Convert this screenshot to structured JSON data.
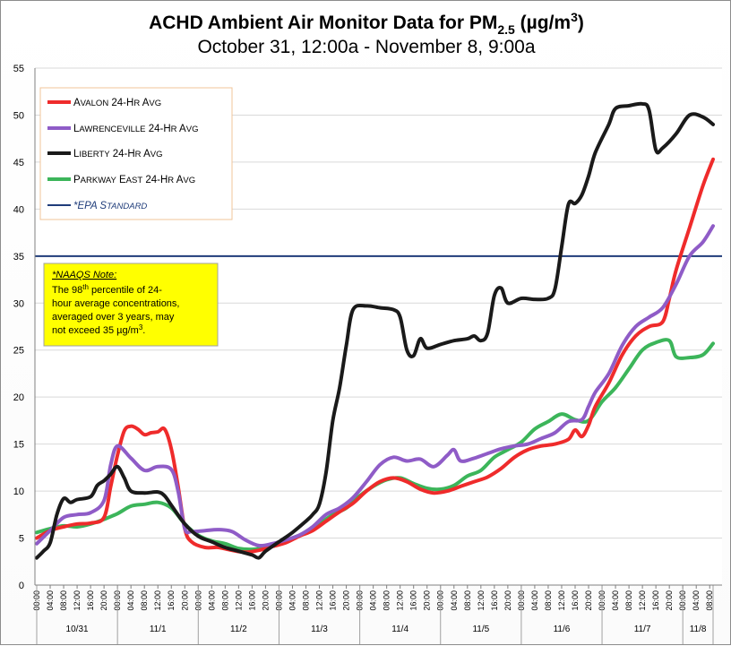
{
  "chart_data": {
    "type": "line",
    "title": "ACHD Ambient Air Monitor Data for PM",
    "title_sub": "2.5",
    "title_unit_pre": " (µg/m",
    "title_unit_sup": "3",
    "title_unit_post": ")",
    "subtitle": "October 31, 12:00a - November 8, 9:00a",
    "ylim": [
      0,
      55
    ],
    "yticks": [
      "0",
      "5",
      "10",
      "15",
      "20",
      "25",
      "30",
      "35",
      "40",
      "45",
      "50",
      "55"
    ],
    "grid": true,
    "x_start": "2019-10-31 00:00",
    "x_end": "2019-11-08 09:00",
    "x_tick_labels": [
      "00:00",
      "04:00",
      "08:00",
      "12:00",
      "16:00",
      "20:00"
    ],
    "x_day_labels": [
      "10/31",
      "11/1",
      "11/2",
      "11/3",
      "11/4",
      "11/5",
      "11/6",
      "11/7",
      "11/8"
    ],
    "legend_position": "top-left",
    "series": [
      {
        "name": "Avalon 24-Hr Avg",
        "legend_parts": [
          "A",
          "VALON",
          " 24-H",
          "R",
          " A",
          "VG"
        ],
        "color": "#ef2b2b",
        "points": [
          [
            "10/31 00:00",
            5.0
          ],
          [
            "10/31 04:00",
            5.8
          ],
          [
            "10/31 08:00",
            6.2
          ],
          [
            "10/31 12:00",
            6.5
          ],
          [
            "10/31 16:00",
            6.6
          ],
          [
            "10/31 20:00",
            7.2
          ],
          [
            "10/31 22:00",
            10.5
          ],
          [
            "11/1 00:00",
            13.8
          ],
          [
            "11/1 02:00",
            16.4
          ],
          [
            "11/1 04:00",
            16.9
          ],
          [
            "11/1 06:00",
            16.6
          ],
          [
            "11/1 08:00",
            16.0
          ],
          [
            "11/1 10:00",
            16.2
          ],
          [
            "11/1 12:00",
            16.3
          ],
          [
            "11/1 14:00",
            16.6
          ],
          [
            "11/1 16:00",
            14.5
          ],
          [
            "11/1 18:00",
            10.5
          ],
          [
            "11/1 20:00",
            6.0
          ],
          [
            "11/1 22:00",
            4.6
          ],
          [
            "11/2 02:00",
            4.0
          ],
          [
            "11/2 06:00",
            4.0
          ],
          [
            "11/2 10:00",
            3.7
          ],
          [
            "11/2 14:00",
            3.5
          ],
          [
            "11/2 18:00",
            3.7
          ],
          [
            "11/2 22:00",
            4.1
          ],
          [
            "11/3 02:00",
            4.5
          ],
          [
            "11/3 06:00",
            5.2
          ],
          [
            "11/3 10:00",
            5.8
          ],
          [
            "11/3 14:00",
            6.8
          ],
          [
            "11/3 18:00",
            7.8
          ],
          [
            "11/3 22:00",
            8.7
          ],
          [
            "11/4 02:00",
            10.0
          ],
          [
            "11/4 06:00",
            11.0
          ],
          [
            "11/4 10:00",
            11.4
          ],
          [
            "11/4 14:00",
            11.0
          ],
          [
            "11/4 18:00",
            10.2
          ],
          [
            "11/4 22:00",
            9.8
          ],
          [
            "11/5 02:00",
            10.0
          ],
          [
            "11/5 06:00",
            10.5
          ],
          [
            "11/5 10:00",
            11.0
          ],
          [
            "11/5 14:00",
            11.5
          ],
          [
            "11/5 18:00",
            12.4
          ],
          [
            "11/5 22:00",
            13.6
          ],
          [
            "11/6 02:00",
            14.4
          ],
          [
            "11/6 06:00",
            14.8
          ],
          [
            "11/6 10:00",
            15.0
          ],
          [
            "11/6 14:00",
            15.5
          ],
          [
            "11/6 16:00",
            16.5
          ],
          [
            "11/6 18:00",
            15.8
          ],
          [
            "11/6 20:00",
            17.0
          ],
          [
            "11/6 22:00",
            19.0
          ],
          [
            "11/7 02:00",
            21.5
          ],
          [
            "11/7 06:00",
            24.5
          ],
          [
            "11/7 10:00",
            26.5
          ],
          [
            "11/7 14:00",
            27.5
          ],
          [
            "11/7 18:00",
            28.0
          ],
          [
            "11/7 20:00",
            30.5
          ],
          [
            "11/7 22:00",
            33.5
          ],
          [
            "11/8 02:00",
            38.0
          ],
          [
            "11/8 06:00",
            42.5
          ],
          [
            "11/8 09:00",
            45.3
          ]
        ]
      },
      {
        "name": "Lawrenceville 24-Hr Avg",
        "legend_parts": [
          "L",
          "AWRENCEVILLE",
          " 24-H",
          "R",
          " A",
          "VG"
        ],
        "color": "#8f5cc7",
        "points": [
          [
            "10/31 00:00",
            4.4
          ],
          [
            "10/31 04:00",
            5.8
          ],
          [
            "10/31 08:00",
            7.2
          ],
          [
            "10/31 12:00",
            7.5
          ],
          [
            "10/31 16:00",
            7.7
          ],
          [
            "10/31 20:00",
            9.0
          ],
          [
            "10/31 22:00",
            12.8
          ],
          [
            "11/1 00:00",
            14.8
          ],
          [
            "11/1 04:00",
            13.5
          ],
          [
            "11/1 08:00",
            12.2
          ],
          [
            "11/1 12:00",
            12.6
          ],
          [
            "11/1 16:00",
            12.3
          ],
          [
            "11/1 18:00",
            10.0
          ],
          [
            "11/1 20:00",
            6.0
          ],
          [
            "11/1 22:00",
            5.7
          ],
          [
            "11/2 02:00",
            5.8
          ],
          [
            "11/2 06:00",
            5.9
          ],
          [
            "11/2 10:00",
            5.7
          ],
          [
            "11/2 14:00",
            4.8
          ],
          [
            "11/2 18:00",
            4.2
          ],
          [
            "11/2 22:00",
            4.4
          ],
          [
            "11/3 02:00",
            4.8
          ],
          [
            "11/3 06:00",
            5.3
          ],
          [
            "11/3 10:00",
            6.2
          ],
          [
            "11/3 14:00",
            7.5
          ],
          [
            "11/3 18:00",
            8.2
          ],
          [
            "11/3 22:00",
            9.3
          ],
          [
            "11/4 02:00",
            11.0
          ],
          [
            "11/4 06:00",
            12.8
          ],
          [
            "11/4 10:00",
            13.6
          ],
          [
            "11/4 14:00",
            13.2
          ],
          [
            "11/4 18:00",
            13.4
          ],
          [
            "11/4 22:00",
            12.6
          ],
          [
            "11/5 02:00",
            13.8
          ],
          [
            "11/5 04:00",
            14.4
          ],
          [
            "11/5 06:00",
            13.2
          ],
          [
            "11/5 10:00",
            13.5
          ],
          [
            "11/5 14:00",
            14.0
          ],
          [
            "11/5 18:00",
            14.5
          ],
          [
            "11/5 22:00",
            14.8
          ],
          [
            "11/6 02:00",
            15.0
          ],
          [
            "11/6 06:00",
            15.6
          ],
          [
            "11/6 10:00",
            16.2
          ],
          [
            "11/6 14:00",
            17.4
          ],
          [
            "11/6 18:00",
            17.6
          ],
          [
            "11/6 20:00",
            19.0
          ],
          [
            "11/6 22:00",
            20.5
          ],
          [
            "11/7 02:00",
            22.5
          ],
          [
            "11/7 06:00",
            25.5
          ],
          [
            "11/7 10:00",
            27.5
          ],
          [
            "11/7 14:00",
            28.5
          ],
          [
            "11/7 18:00",
            29.5
          ],
          [
            "11/7 22:00",
            32.0
          ],
          [
            "11/8 02:00",
            35.0
          ],
          [
            "11/8 06:00",
            36.5
          ],
          [
            "11/8 09:00",
            38.2
          ]
        ]
      },
      {
        "name": "Liberty 24-Hr Avg",
        "legend_parts": [
          "L",
          "IBERTY",
          " 24-H",
          "R",
          " A",
          "VG"
        ],
        "color": "#1a1a1a",
        "points": [
          [
            "10/31 00:00",
            2.9
          ],
          [
            "10/31 02:00",
            3.6
          ],
          [
            "10/31 04:00",
            4.5
          ],
          [
            "10/31 06:00",
            7.5
          ],
          [
            "10/31 08:00",
            9.2
          ],
          [
            "10/31 10:00",
            8.8
          ],
          [
            "10/31 12:00",
            9.1
          ],
          [
            "10/31 16:00",
            9.4
          ],
          [
            "10/31 18:00",
            10.6
          ],
          [
            "10/31 20:00",
            11.1
          ],
          [
            "10/31 22:00",
            11.8
          ],
          [
            "11/1 00:00",
            12.6
          ],
          [
            "11/1 02:00",
            11.4
          ],
          [
            "11/1 04:00",
            10.0
          ],
          [
            "11/1 08:00",
            9.8
          ],
          [
            "11/1 12:00",
            9.9
          ],
          [
            "11/1 14:00",
            9.5
          ],
          [
            "11/1 16:00",
            8.5
          ],
          [
            "11/1 20:00",
            6.5
          ],
          [
            "11/2 00:00",
            5.2
          ],
          [
            "11/2 04:00",
            4.6
          ],
          [
            "11/2 08:00",
            4.0
          ],
          [
            "11/2 12:00",
            3.6
          ],
          [
            "11/2 16:00",
            3.2
          ],
          [
            "11/2 18:00",
            2.9
          ],
          [
            "11/2 20:00",
            3.6
          ],
          [
            "11/3 00:00",
            4.6
          ],
          [
            "11/3 04:00",
            5.6
          ],
          [
            "11/3 08:00",
            6.8
          ],
          [
            "11/3 10:00",
            7.5
          ],
          [
            "11/3 12:00",
            8.6
          ],
          [
            "11/3 14:00",
            12.0
          ],
          [
            "11/3 16:00",
            17.5
          ],
          [
            "11/3 18:00",
            21.0
          ],
          [
            "11/3 20:00",
            25.5
          ],
          [
            "11/3 22:00",
            29.3
          ],
          [
            "11/4 02:00",
            29.7
          ],
          [
            "11/4 06:00",
            29.5
          ],
          [
            "11/4 10:00",
            29.3
          ],
          [
            "11/4 12:00",
            28.5
          ],
          [
            "11/4 14:00",
            25.0
          ],
          [
            "11/4 16:00",
            24.4
          ],
          [
            "11/4 18:00",
            26.2
          ],
          [
            "11/4 20:00",
            25.2
          ],
          [
            "11/5 00:00",
            25.6
          ],
          [
            "11/5 04:00",
            26.0
          ],
          [
            "11/5 08:00",
            26.2
          ],
          [
            "11/5 10:00",
            26.5
          ],
          [
            "11/5 12:00",
            26.0
          ],
          [
            "11/5 14:00",
            26.8
          ],
          [
            "11/5 16:00",
            30.8
          ],
          [
            "11/5 18:00",
            31.6
          ],
          [
            "11/5 20:00",
            30.0
          ],
          [
            "11/6 00:00",
            30.5
          ],
          [
            "11/6 04:00",
            30.4
          ],
          [
            "11/6 08:00",
            30.5
          ],
          [
            "11/6 10:00",
            31.5
          ],
          [
            "11/6 12:00",
            36.0
          ],
          [
            "11/6 14:00",
            40.5
          ],
          [
            "11/6 16:00",
            40.6
          ],
          [
            "11/6 18:00",
            41.5
          ],
          [
            "11/6 20:00",
            43.5
          ],
          [
            "11/6 22:00",
            46.0
          ],
          [
            "11/7 02:00",
            49.0
          ],
          [
            "11/7 04:00",
            50.7
          ],
          [
            "11/7 08:00",
            51.0
          ],
          [
            "11/7 12:00",
            51.2
          ],
          [
            "11/7 14:00",
            50.5
          ],
          [
            "11/7 16:00",
            46.3
          ],
          [
            "11/7 18:00",
            46.5
          ],
          [
            "11/7 22:00",
            48.0
          ],
          [
            "11/8 02:00",
            50.0
          ],
          [
            "11/8 06:00",
            49.8
          ],
          [
            "11/8 09:00",
            49.0
          ]
        ]
      },
      {
        "name": "Parkway East 24-Hr Avg",
        "legend_parts": [
          "P",
          "ARKWAY",
          " E",
          "AST",
          " 24-H",
          "R",
          " A",
          "VG"
        ],
        "color": "#3cb55a",
        "points": [
          [
            "10/31 00:00",
            5.6
          ],
          [
            "10/31 04:00",
            6.0
          ],
          [
            "10/31 08:00",
            6.3
          ],
          [
            "10/31 12:00",
            6.2
          ],
          [
            "10/31 16:00",
            6.5
          ],
          [
            "10/31 20:00",
            7.0
          ],
          [
            "11/1 00:00",
            7.6
          ],
          [
            "11/1 04:00",
            8.4
          ],
          [
            "11/1 08:00",
            8.6
          ],
          [
            "11/1 12:00",
            8.8
          ],
          [
            "11/1 16:00",
            8.2
          ],
          [
            "11/1 20:00",
            6.5
          ],
          [
            "11/2 00:00",
            5.3
          ],
          [
            "11/2 04:00",
            4.7
          ],
          [
            "11/2 08:00",
            4.4
          ],
          [
            "11/2 12:00",
            3.9
          ],
          [
            "11/2 16:00",
            3.8
          ],
          [
            "11/2 20:00",
            4.0
          ],
          [
            "11/3 00:00",
            4.3
          ],
          [
            "11/3 04:00",
            5.0
          ],
          [
            "11/3 08:00",
            5.6
          ],
          [
            "11/3 12:00",
            6.5
          ],
          [
            "11/3 16:00",
            7.5
          ],
          [
            "11/3 20:00",
            8.2
          ],
          [
            "11/4 00:00",
            9.5
          ],
          [
            "11/4 04:00",
            10.5
          ],
          [
            "11/4 08:00",
            11.2
          ],
          [
            "11/4 12:00",
            11.4
          ],
          [
            "11/4 16:00",
            10.8
          ],
          [
            "11/4 20:00",
            10.3
          ],
          [
            "11/5 00:00",
            10.2
          ],
          [
            "11/5 04:00",
            10.6
          ],
          [
            "11/5 08:00",
            11.6
          ],
          [
            "11/5 12:00",
            12.2
          ],
          [
            "11/5 16:00",
            13.6
          ],
          [
            "11/5 20:00",
            14.4
          ],
          [
            "11/6 00:00",
            15.2
          ],
          [
            "11/6 04:00",
            16.6
          ],
          [
            "11/6 08:00",
            17.4
          ],
          [
            "11/6 12:00",
            18.2
          ],
          [
            "11/6 16:00",
            17.6
          ],
          [
            "11/6 20:00",
            17.5
          ],
          [
            "11/7 00:00",
            19.5
          ],
          [
            "11/7 04:00",
            21.0
          ],
          [
            "11/7 08:00",
            23.0
          ],
          [
            "11/7 12:00",
            25.0
          ],
          [
            "11/7 16:00",
            25.8
          ],
          [
            "11/7 20:00",
            26.0
          ],
          [
            "11/7 22:00",
            24.3
          ],
          [
            "11/8 02:00",
            24.2
          ],
          [
            "11/8 06:00",
            24.5
          ],
          [
            "11/8 09:00",
            25.7
          ]
        ]
      }
    ],
    "reference_line": {
      "name": "*EPA Standard",
      "legend_parts": [
        "*EPA S",
        "TANDARD"
      ],
      "value": 35,
      "color": "#1f3c7a"
    },
    "annotation": {
      "heading": "*NAAQS Note:",
      "line1_pre": "The 98",
      "line1_sup": "th",
      "line1_post": " percentile of 24-",
      "line2": "hour average concentrations,",
      "line3": "averaged over 3 years, may",
      "line4_pre": "not exceed 35 µg/m",
      "line4_sup": "3",
      "line4_post": ".",
      "background": "#ffff00"
    }
  }
}
